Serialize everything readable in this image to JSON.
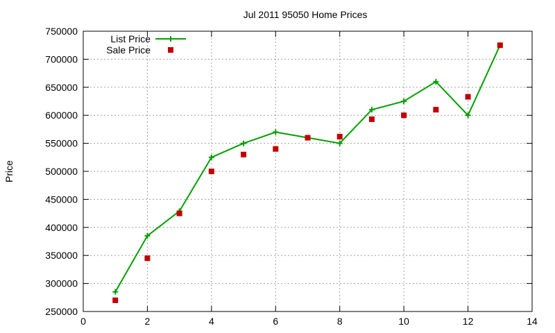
{
  "chart_data": {
    "type": "line",
    "title": "Jul 2011 95050 Home Prices",
    "xlabel": "",
    "ylabel": "Price",
    "xlim": [
      0,
      14
    ],
    "ylim": [
      250000,
      750000
    ],
    "x_ticks": [
      0,
      2,
      4,
      6,
      8,
      10,
      12,
      14
    ],
    "y_ticks": [
      250000,
      300000,
      350000,
      400000,
      450000,
      500000,
      550000,
      600000,
      650000,
      700000,
      750000
    ],
    "grid": true,
    "legend_position": "top-left",
    "series": [
      {
        "name": "List Price",
        "style": "line-with-plus-markers",
        "color": "#00a000",
        "x": [
          1,
          2,
          3,
          4,
          5,
          6,
          7,
          8,
          9,
          10,
          11,
          12,
          13
        ],
        "y": [
          285000,
          385000,
          429000,
          525000,
          550000,
          570000,
          560000,
          550000,
          610000,
          625000,
          660000,
          600000,
          725000
        ]
      },
      {
        "name": "Sale Price",
        "style": "square-markers",
        "color": "#c00000",
        "x": [
          1,
          2,
          3,
          4,
          5,
          6,
          7,
          8,
          9,
          10,
          11,
          12,
          13
        ],
        "y": [
          270000,
          345000,
          425000,
          500000,
          530000,
          540000,
          560000,
          562000,
          593000,
          600000,
          610000,
          633000,
          725000
        ]
      }
    ]
  }
}
